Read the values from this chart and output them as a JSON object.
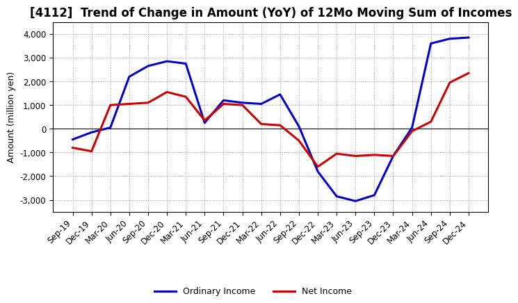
{
  "title": "[4112]  Trend of Change in Amount (YoY) of 12Mo Moving Sum of Incomes",
  "ylabel": "Amount (million yen)",
  "x_labels": [
    "Sep-19",
    "Dec-19",
    "Mar-20",
    "Jun-20",
    "Sep-20",
    "Dec-20",
    "Mar-21",
    "Jun-21",
    "Sep-21",
    "Dec-21",
    "Mar-22",
    "Jun-22",
    "Sep-22",
    "Dec-22",
    "Mar-23",
    "Jun-23",
    "Sep-23",
    "Dec-23",
    "Mar-24",
    "Jun-24",
    "Sep-24",
    "Dec-24"
  ],
  "ordinary_income": [
    -450,
    -150,
    50,
    2200,
    2650,
    2850,
    2750,
    250,
    1200,
    1100,
    1050,
    1450,
    100,
    -1800,
    -2850,
    -3050,
    -2800,
    -1150,
    50,
    3600,
    3800,
    3850
  ],
  "net_income": [
    -800,
    -950,
    1000,
    1050,
    1100,
    1550,
    1350,
    350,
    1050,
    1000,
    200,
    150,
    -500,
    -1600,
    -1050,
    -1150,
    -1100,
    -1150,
    -100,
    300,
    1950,
    2350
  ],
  "ordinary_color": "#0000cc",
  "net_color": "#cc0000",
  "line_width": 2.2,
  "ylim": [
    -3500,
    4500
  ],
  "yticks": [
    -3000,
    -2000,
    -1000,
    0,
    1000,
    2000,
    3000,
    4000
  ],
  "bg_color": "#ffffff",
  "grid_color": "#999999",
  "title_fontsize": 12,
  "label_fontsize": 9,
  "tick_fontsize": 8.5
}
